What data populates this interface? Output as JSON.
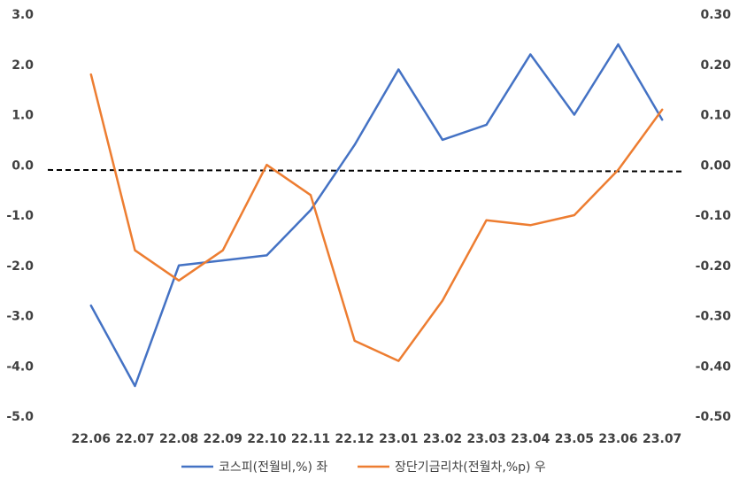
{
  "chart_data": {
    "type": "line",
    "categories": [
      "22.06",
      "22.07",
      "22.08",
      "22.09",
      "22.10",
      "22.11",
      "22.12",
      "23.01",
      "23.02",
      "23.03",
      "23.04",
      "23.05",
      "23.06",
      "23.07"
    ],
    "y_left": {
      "range": [
        -5.0,
        3.0
      ],
      "ticks": [
        "3.0",
        "2.0",
        "1.0",
        "0.0",
        "-1.0",
        "-2.0",
        "-3.0",
        "-4.0",
        "-5.0"
      ]
    },
    "y_right": {
      "range": [
        -0.5,
        0.3
      ],
      "ticks": [
        "0.30",
        "0.20",
        "0.10",
        "0.00",
        "-0.10",
        "-0.20",
        "-0.30",
        "-0.40",
        "-0.50"
      ]
    },
    "series": [
      {
        "name": "코스피(전월비,%) 좌",
        "axis": "left",
        "color": "#4472C4",
        "values": [
          -2.8,
          -4.4,
          -2.0,
          -1.9,
          -1.8,
          -0.9,
          0.4,
          1.9,
          0.5,
          0.8,
          2.2,
          1.0,
          2.4,
          0.9
        ]
      },
      {
        "name": "장단기금리차(전월차,%p) 우",
        "axis": "right",
        "color": "#ED7D31",
        "values": [
          0.18,
          -0.17,
          -0.23,
          -0.17,
          0.0,
          -0.06,
          -0.35,
          -0.39,
          -0.27,
          -0.11,
          -0.12,
          -0.1,
          -0.01,
          0.11
        ]
      }
    ],
    "reference_line": {
      "style": "dashed",
      "color": "#000000",
      "start": -0.1,
      "end": -0.13,
      "axis": "left"
    },
    "grid": false,
    "legend": "bottom"
  }
}
